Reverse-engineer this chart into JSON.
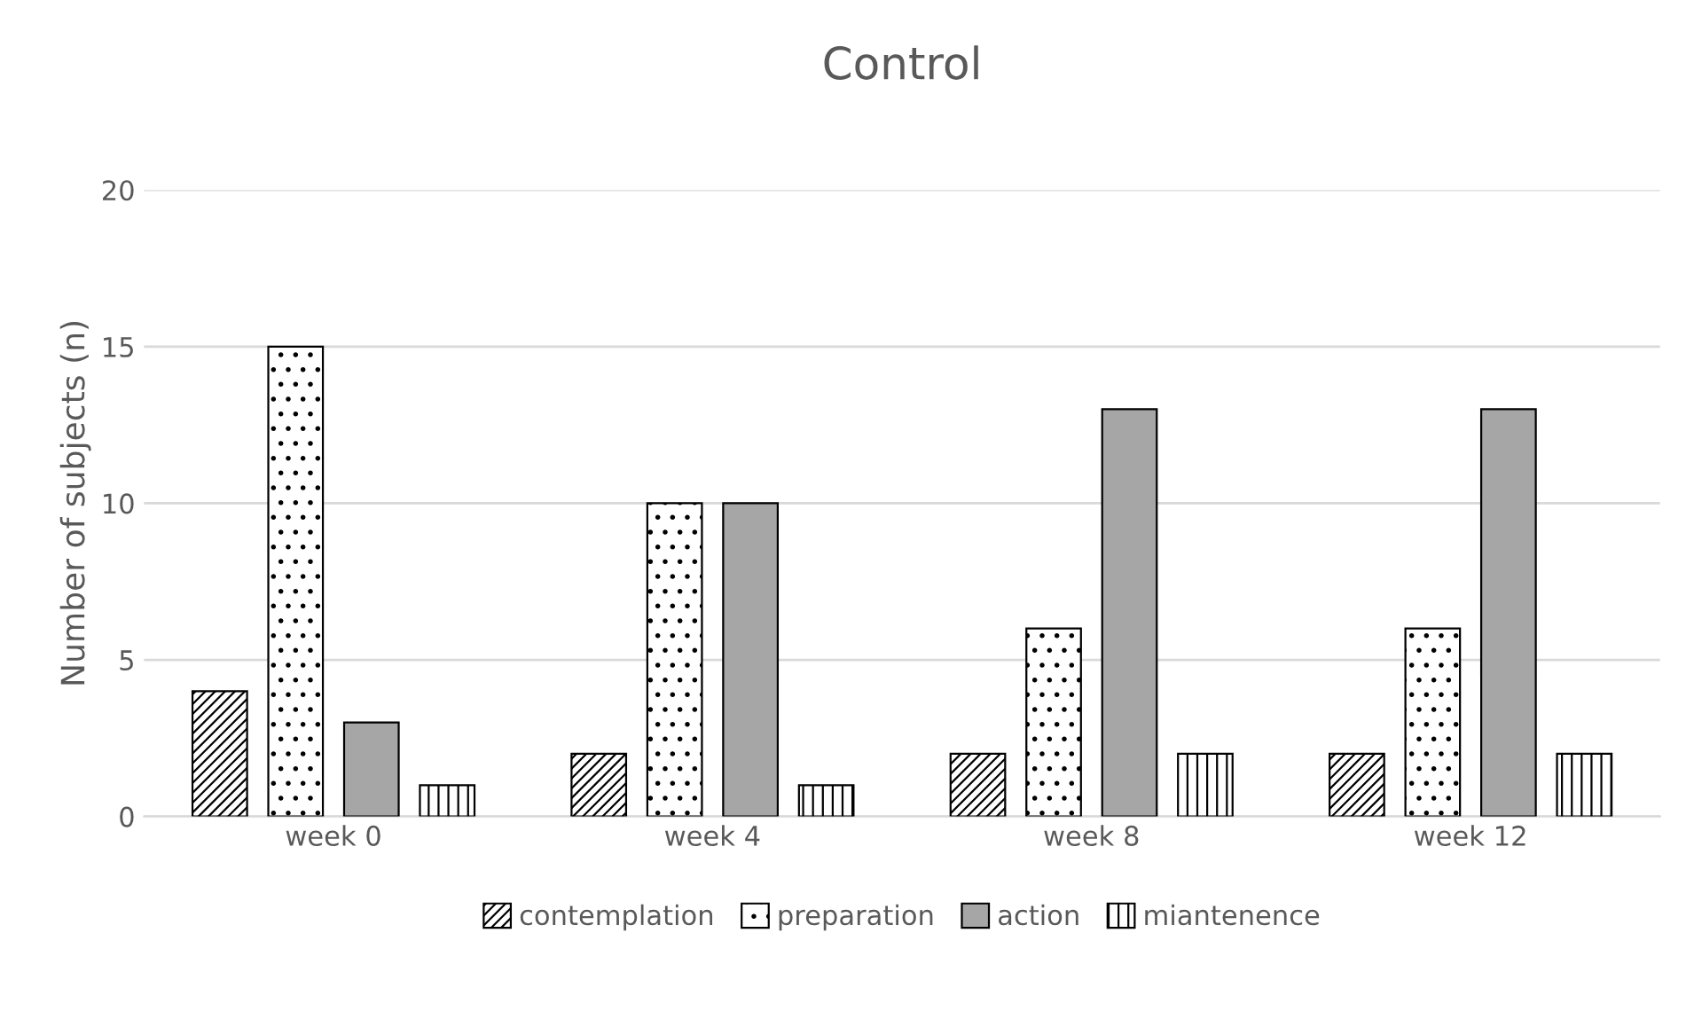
{
  "chart_data": {
    "type": "bar",
    "title": "Control",
    "ylabel": "Number of subjects (n)",
    "categories": [
      "week 0",
      "week 4",
      "week 8",
      "week 12"
    ],
    "series": [
      {
        "name": "contemplation",
        "color": "#ffffff",
        "values": [
          4,
          2,
          2,
          2
        ]
      },
      {
        "name": "preparation",
        "color": "#ffffff",
        "values": [
          15,
          10,
          6,
          6
        ]
      },
      {
        "name": "action",
        "color": "#a6a6a6",
        "values": [
          3,
          10,
          13,
          13
        ]
      },
      {
        "name": "miantenence",
        "color": "#ffffff",
        "values": [
          1,
          1,
          2,
          2
        ]
      }
    ],
    "ylim": [
      0,
      20
    ],
    "yticks": [
      0,
      5,
      10,
      15,
      20
    ],
    "grid": "y",
    "legend": "bottom"
  }
}
